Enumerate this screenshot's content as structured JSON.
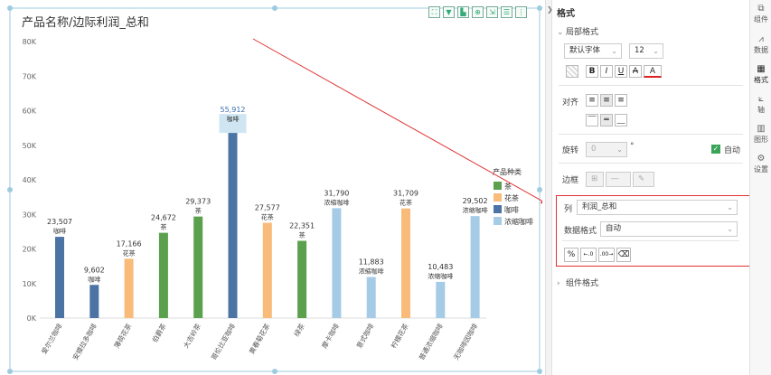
{
  "chart": {
    "title": "产品名称/边际利润_总和",
    "toolbar_icons": [
      "fullscreen-icon",
      "filter-icon",
      "chart-type-icon",
      "zoom-icon",
      "export-icon",
      "list-icon",
      "more-icon"
    ]
  },
  "chart_data": {
    "type": "bar",
    "title": "产品名称/边际利润_总和",
    "ylim": [
      0,
      80000
    ],
    "yticks": [
      "0K",
      "10K",
      "20K",
      "30K",
      "40K",
      "50K",
      "60K",
      "70K",
      "80K"
    ],
    "categories": [
      "爱尔兰咖啡",
      "安摸拉多咖啡",
      "薄荷花茶",
      "伯爵茶",
      "大吉岭茶",
      "哥伦比亚咖啡",
      "黄春菊花茶",
      "绿茶",
      "摩卡咖啡",
      "意式咖啡",
      "柠檬花茶",
      "普通浓缩咖啡",
      "无咖啡因咖啡"
    ],
    "values": [
      23507,
      9602,
      17166,
      24672,
      29373,
      55912,
      27577,
      22351,
      31790,
      11883,
      31709,
      10483,
      29502
    ],
    "value_labels": [
      "23,507",
      "9,602",
      "17,166",
      "24,672",
      "29,373",
      "55,912",
      "27,577",
      "22,351",
      "31,790",
      "11,883",
      "31,709",
      "10,483",
      "29,502"
    ],
    "kinds": [
      "咖啡",
      "咖啡",
      "花茶",
      "茶",
      "茶",
      "咖啡",
      "花茶",
      "茶",
      "浓缩咖啡",
      "浓缩咖啡",
      "花茶",
      "浓缩咖啡",
      "浓缩咖啡"
    ],
    "legend_title": "产品种类",
    "legend": [
      {
        "name": "茶",
        "color": "#5ba04c"
      },
      {
        "name": "花茶",
        "color": "#f8bb7a"
      },
      {
        "name": "咖啡",
        "color": "#4b73a4"
      },
      {
        "name": "浓缩咖啡",
        "color": "#a5cbe6"
      }
    ],
    "legend_placement": "right",
    "grid": false
  },
  "panel": {
    "title": "格式",
    "section_local": "局部格式",
    "font_family": "默认字体",
    "font_size": "12",
    "style_buttons": [
      "B",
      "I",
      "U",
      "A",
      "A"
    ],
    "align_label": "对齐",
    "rotate_label": "旋转",
    "rotate_value": "0",
    "degree": "°",
    "auto_label": "自动",
    "border_label": "边框",
    "column_label": "列",
    "column_value": "利润_总和",
    "data_format_label": "数据格式",
    "data_format_value": "自动",
    "num_buttons": [
      "%",
      "←.0",
      ".00→"
    ],
    "section_component": "组件格式"
  },
  "sidebar": {
    "items": [
      {
        "label": "组件",
        "icon": "component-icon"
      },
      {
        "label": "数据",
        "icon": "data-icon"
      },
      {
        "label": "格式",
        "icon": "format-icon"
      },
      {
        "label": "轴",
        "icon": "axis-icon"
      },
      {
        "label": "图形",
        "icon": "shape-icon"
      },
      {
        "label": "设置",
        "icon": "settings-icon"
      }
    ]
  }
}
